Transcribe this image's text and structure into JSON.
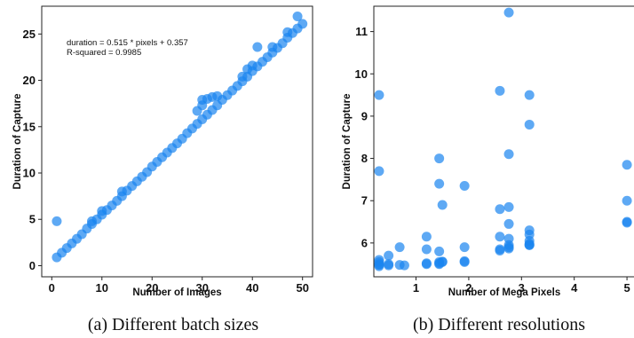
{
  "colors": {
    "point": "#1a85f0",
    "frame": "#222222",
    "text": "#111111"
  },
  "captions": [
    "(a) Different batch sizes",
    "(b) Different resolutions"
  ],
  "chart_data": [
    {
      "type": "scatter",
      "title": "",
      "xlabel": "Number of Images",
      "ylabel": "Duration of Capture",
      "xlim": [
        -2,
        52
      ],
      "ylim": [
        -1.2,
        28
      ],
      "xticks": [
        0,
        10,
        20,
        30,
        40,
        50
      ],
      "yticks": [
        0,
        5,
        10,
        15,
        20,
        25
      ],
      "grid": false,
      "annotations": [
        "duration = 0.515 * pixels + 0.357",
        "R-squared = 0.9985"
      ],
      "x": [
        1,
        1,
        2,
        3,
        4,
        5,
        6,
        7,
        8,
        9,
        10,
        11,
        12,
        13,
        14,
        15,
        16,
        17,
        18,
        19,
        20,
        21,
        22,
        23,
        24,
        25,
        26,
        27,
        28,
        29,
        30,
        31,
        32,
        33,
        34,
        35,
        36,
        37,
        38,
        39,
        40,
        41,
        42,
        43,
        44,
        45,
        46,
        47,
        48,
        49,
        50,
        8,
        10,
        14,
        29,
        30,
        30,
        31,
        32,
        33,
        38,
        39,
        40,
        41,
        44,
        47,
        49
      ],
      "y": [
        4.8,
        0.9,
        1.4,
        1.9,
        2.4,
        2.9,
        3.4,
        4.0,
        4.5,
        5.0,
        5.5,
        6.0,
        6.5,
        7.0,
        7.5,
        8.1,
        8.6,
        9.1,
        9.6,
        10.1,
        10.7,
        11.2,
        11.7,
        12.2,
        12.7,
        13.2,
        13.7,
        14.3,
        14.8,
        15.3,
        15.8,
        16.3,
        16.8,
        17.3,
        17.9,
        18.4,
        18.9,
        19.4,
        19.9,
        20.4,
        21.0,
        21.5,
        22.0,
        22.5,
        23.0,
        23.5,
        24.0,
        24.6,
        25.1,
        25.6,
        26.1,
        4.8,
        5.9,
        8.0,
        16.7,
        17.3,
        17.9,
        18.0,
        18.2,
        18.3,
        20.4,
        21.2,
        21.6,
        23.6,
        23.6,
        25.2,
        26.9
      ]
    },
    {
      "type": "scatter",
      "title": "",
      "xlabel": "Number of Mega Pixels",
      "ylabel": "Duration of Capture",
      "xlim": [
        0.2,
        5.15
      ],
      "ylim": [
        5.2,
        11.6
      ],
      "xticks": [
        1,
        2,
        3,
        4,
        5
      ],
      "yticks": [
        6,
        7,
        8,
        9,
        10,
        11
      ],
      "grid": false,
      "x": [
        0.3,
        0.3,
        0.3,
        0.3,
        0.3,
        0.3,
        0.3,
        0.48,
        0.48,
        0.48,
        0.69,
        0.69,
        0.78,
        1.2,
        1.2,
        1.2,
        1.2,
        1.44,
        1.44,
        1.44,
        1.44,
        1.44,
        1.44,
        1.5,
        1.5,
        1.5,
        1.92,
        1.92,
        1.92,
        1.92,
        2.59,
        2.59,
        2.59,
        2.59,
        2.59,
        2.76,
        2.76,
        2.76,
        2.76,
        2.76,
        2.76,
        2.76,
        2.76,
        3.15,
        3.15,
        3.15,
        3.15,
        3.15,
        3.15,
        3.15,
        3.15,
        5.0,
        5.0,
        5.0,
        5.0
      ],
      "y": [
        9.5,
        7.7,
        5.6,
        5.55,
        5.5,
        5.48,
        5.45,
        5.7,
        5.5,
        5.47,
        5.9,
        5.48,
        5.47,
        6.15,
        5.85,
        5.52,
        5.5,
        8.0,
        7.4,
        5.8,
        5.55,
        5.52,
        5.5,
        6.9,
        5.56,
        5.55,
        7.35,
        5.9,
        5.57,
        5.55,
        9.6,
        6.8,
        6.15,
        5.85,
        5.82,
        11.45,
        8.1,
        6.85,
        6.45,
        6.1,
        5.95,
        5.9,
        5.87,
        9.5,
        8.8,
        6.3,
        6.2,
        6.05,
        5.95,
        5.98,
        5.95,
        7.85,
        7.0,
        6.5,
        6.48
      ]
    }
  ]
}
